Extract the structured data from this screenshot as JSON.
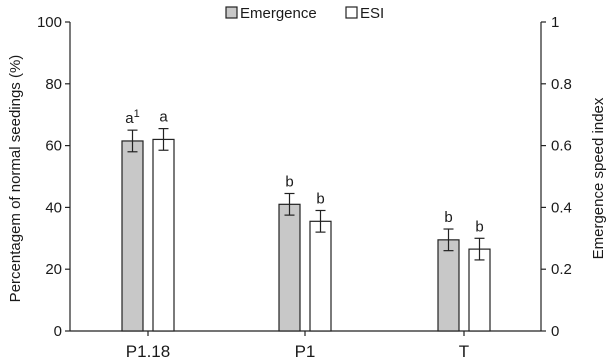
{
  "chart_data": {
    "type": "bar",
    "title": "",
    "categories": [
      "P1.18",
      "P1",
      "T"
    ],
    "series": [
      {
        "name": "Emergence",
        "axis": "left",
        "values": [
          61.5,
          41,
          29.5
        ],
        "errors": [
          3.5,
          3.5,
          3.5
        ],
        "labels": [
          "a",
          "b",
          "b"
        ],
        "fill": "#c8c8c8"
      },
      {
        "name": "ESI",
        "axis": "right",
        "values": [
          0.62,
          0.355,
          0.265
        ],
        "errors": [
          0.035,
          0.035,
          0.035
        ],
        "labels": [
          "a",
          "b",
          "b"
        ],
        "fill": "#ffffff"
      }
    ],
    "label_superscripts": [
      [
        "1",
        "",
        ""
      ],
      [
        "",
        "",
        ""
      ]
    ],
    "ylabel": "Percentagem of normal seedings (%)",
    "ylim": [
      0,
      100
    ],
    "yticks": [
      0,
      20,
      40,
      60,
      80,
      100
    ],
    "y2label": "Emergence speed index",
    "y2lim": [
      0,
      1
    ],
    "y2ticks": [
      "0",
      "0.2",
      "0.4",
      "0.6",
      "0.8",
      "1"
    ],
    "legend_position": "top-center",
    "grid": false
  }
}
